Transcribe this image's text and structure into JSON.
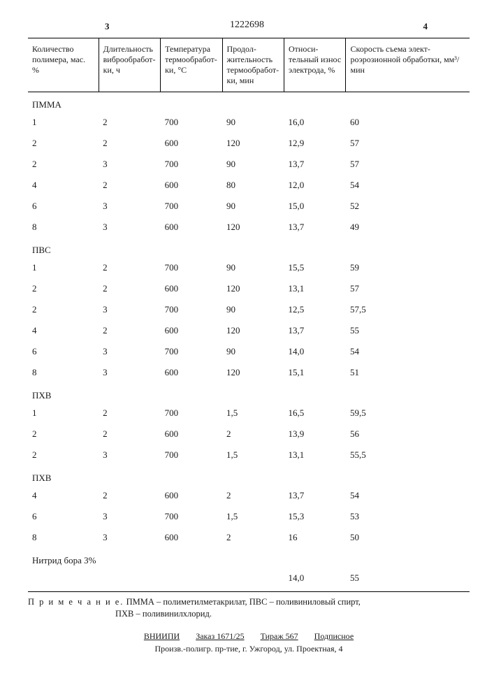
{
  "page": {
    "left_num": "3",
    "right_num": "4",
    "patent_number": "1222698"
  },
  "table": {
    "columns": [
      "Количество полимера, мас. %",
      "Длитель­ность вибро­обработ­ки, ч",
      "Темпера­тура термо­обработ­ки, °С",
      "Продол­житель­ность термо­обработ­ки, мин",
      "Относи­тельный износ элект­рода, %",
      "Скорость съема элект­роэрозионной обработки, мм³/мин"
    ],
    "col_widths": [
      "16%",
      "14%",
      "14%",
      "14%",
      "14%",
      "28%"
    ],
    "sections": [
      {
        "label": "ПММА",
        "rows": [
          [
            "1",
            "2",
            "700",
            "90",
            "16,0",
            "60"
          ],
          [
            "2",
            "2",
            "600",
            "120",
            "12,9",
            "57"
          ],
          [
            "2",
            "3",
            "700",
            "90",
            "13,7",
            "57"
          ],
          [
            "4",
            "2",
            "600",
            "80",
            "12,0",
            "54"
          ],
          [
            "6",
            "3",
            "700",
            "90",
            "15,0",
            "52"
          ],
          [
            "8",
            "3",
            "600",
            "120",
            "13,7",
            "49"
          ]
        ]
      },
      {
        "label": "ПВС",
        "rows": [
          [
            "1",
            "2",
            "700",
            "90",
            "15,5",
            "59"
          ],
          [
            "2",
            "2",
            "600",
            "120",
            "13,1",
            "57"
          ],
          [
            "2",
            "3",
            "700",
            "90",
            "12,5",
            "57,5"
          ],
          [
            "4",
            "2",
            "600",
            "120",
            "13,7",
            "55"
          ],
          [
            "6",
            "3",
            "700",
            "90",
            "14,0",
            "54"
          ],
          [
            "8",
            "3",
            "600",
            "120",
            "15,1",
            "51"
          ]
        ]
      },
      {
        "label": "ПХВ",
        "rows": [
          [
            "1",
            "2",
            "700",
            "1,5",
            "16,5",
            "59,5"
          ],
          [
            "2",
            "2",
            "600",
            "2",
            "13,9",
            "56"
          ],
          [
            "2",
            "3",
            "700",
            "1,5",
            "13,1",
            "55,5"
          ]
        ]
      },
      {
        "label": "ПХВ",
        "rows": [
          [
            "4",
            "2",
            "600",
            "2",
            "13,7",
            "54"
          ],
          [
            "6",
            "3",
            "700",
            "1,5",
            "15,3",
            "53"
          ],
          [
            "8",
            "3",
            "600",
            "2",
            "16",
            "50"
          ]
        ]
      },
      {
        "label": "Нитрид бора 3%",
        "rows": [
          [
            "",
            "",
            "",
            "",
            "14,0",
            "55"
          ]
        ]
      }
    ]
  },
  "footnote": {
    "lead": "П р и м е ч а н и е.",
    "body1": "ПММА – полиметилметакрилат, ПВС – поливиниловый спирт,",
    "body2": "ПХВ – поливинилхлорид."
  },
  "imprint": {
    "org": "ВНИИПИ",
    "order": "Заказ 1671/25",
    "tirage": "Тираж 567",
    "sign": "Подписное",
    "line2": "Произв.-полигр. пр-тие, г. Ужгород, ул. Проектная, 4"
  }
}
